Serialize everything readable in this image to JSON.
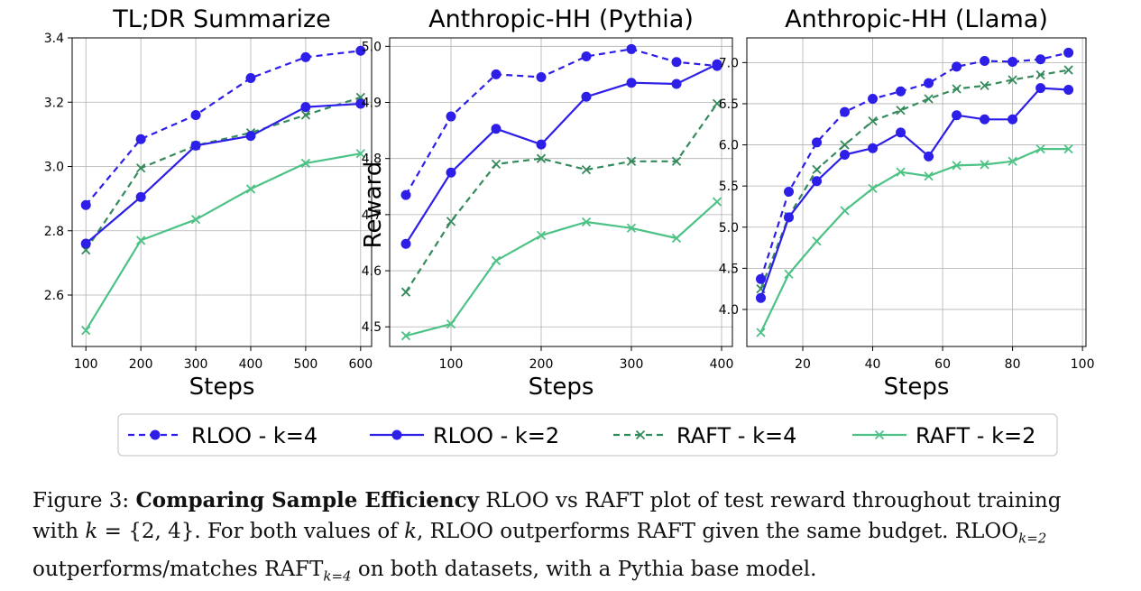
{
  "chart_data": [
    {
      "type": "line",
      "title": "TL;DR Summarize",
      "xlabel": "Steps",
      "ylabel": "",
      "xlim": [
        75,
        620
      ],
      "ylim": [
        2.44,
        3.4
      ],
      "xticks": [
        100,
        200,
        300,
        400,
        500,
        600
      ],
      "yticks": [
        2.6,
        2.8,
        3.0,
        3.2,
        3.4
      ],
      "ytick_labels": [
        "2.6",
        "2.8",
        "3.0",
        "3.2",
        "3.4"
      ],
      "grid": true,
      "series": [
        {
          "name": "RLOO - k=4",
          "x": [
            100,
            200,
            300,
            400,
            500,
            600
          ],
          "values": [
            2.88,
            3.085,
            3.16,
            3.275,
            3.34,
            3.36
          ]
        },
        {
          "name": "RLOO - k=2",
          "x": [
            100,
            200,
            300,
            400,
            500,
            600
          ],
          "values": [
            2.76,
            2.905,
            3.065,
            3.095,
            3.185,
            3.195
          ]
        },
        {
          "name": "RAFT - k=4",
          "x": [
            100,
            200,
            300,
            400,
            500,
            600
          ],
          "values": [
            2.74,
            2.995,
            3.065,
            3.105,
            3.16,
            3.215
          ]
        },
        {
          "name": "RAFT - k=2",
          "x": [
            100,
            200,
            300,
            400,
            500,
            600
          ],
          "values": [
            2.49,
            2.77,
            2.835,
            2.93,
            3.01,
            3.04
          ]
        }
      ]
    },
    {
      "type": "line",
      "title": "Anthropic-HH (Pythia)",
      "xlabel": "Steps",
      "ylabel": "Reward",
      "xlim": [
        32,
        412
      ],
      "ylim": [
        4.465,
        5.015
      ],
      "xticks": [
        100,
        200,
        300,
        400
      ],
      "yticks": [
        4.5,
        4.6,
        4.7,
        4.8,
        4.9,
        5.0
      ],
      "ytick_labels": [
        "4.5",
        "4.6",
        "4.7",
        "4.8",
        "4.9",
        "5.0"
      ],
      "grid": true,
      "series": [
        {
          "name": "RLOO - k=4",
          "x": [
            50,
            100,
            150,
            200,
            250,
            300,
            350,
            395
          ],
          "values": [
            4.735,
            4.875,
            4.95,
            4.945,
            4.982,
            4.995,
            4.972,
            4.965
          ]
        },
        {
          "name": "RLOO - k=2",
          "x": [
            50,
            100,
            150,
            200,
            250,
            300,
            350,
            395
          ],
          "values": [
            4.648,
            4.775,
            4.853,
            4.825,
            4.91,
            4.935,
            4.933,
            4.968
          ]
        },
        {
          "name": "RAFT - k=4",
          "x": [
            50,
            100,
            150,
            200,
            250,
            300,
            350,
            395
          ],
          "values": [
            4.562,
            4.688,
            4.79,
            4.8,
            4.78,
            4.795,
            4.795,
            4.898
          ]
        },
        {
          "name": "RAFT - k=2",
          "x": [
            50,
            100,
            150,
            200,
            250,
            300,
            350,
            395
          ],
          "values": [
            4.484,
            4.505,
            4.618,
            4.663,
            4.687,
            4.676,
            4.658,
            4.723
          ]
        }
      ]
    },
    {
      "type": "line",
      "title": "Anthropic-HH (Llama)",
      "xlabel": "Steps",
      "ylabel": "",
      "xlim": [
        4,
        101
      ],
      "ylim": [
        3.55,
        7.3
      ],
      "xticks": [
        20,
        40,
        60,
        80,
        100
      ],
      "yticks": [
        4.0,
        4.5,
        5.0,
        5.5,
        6.0,
        6.5,
        7.0
      ],
      "ytick_labels": [
        "4.0",
        "4.5",
        "5.0",
        "5.5",
        "6.0",
        "6.5",
        "7.0"
      ],
      "grid": true,
      "series": [
        {
          "name": "RLOO - k=4",
          "x": [
            8,
            16,
            24,
            32,
            40,
            48,
            56,
            64,
            72,
            80,
            88,
            96
          ],
          "values": [
            4.37,
            5.43,
            6.03,
            6.4,
            6.56,
            6.65,
            6.75,
            6.95,
            7.02,
            7.01,
            7.04,
            7.12
          ]
        },
        {
          "name": "RLOO - k=2",
          "x": [
            8,
            16,
            24,
            32,
            40,
            48,
            56,
            64,
            72,
            80,
            88,
            96
          ],
          "values": [
            4.14,
            5.12,
            5.56,
            5.88,
            5.96,
            6.15,
            5.86,
            6.36,
            6.31,
            6.31,
            6.69,
            6.67
          ]
        },
        {
          "name": "RAFT - k=4",
          "x": [
            8,
            16,
            24,
            32,
            40,
            48,
            56,
            64,
            72,
            80,
            88,
            96
          ],
          "values": [
            4.25,
            5.13,
            5.7,
            6.0,
            6.29,
            6.42,
            6.56,
            6.68,
            6.72,
            6.79,
            6.85,
            6.91
          ]
        },
        {
          "name": "RAFT - k=2",
          "x": [
            8,
            16,
            24,
            32,
            40,
            48,
            56,
            64,
            72,
            80,
            88,
            96
          ],
          "values": [
            3.72,
            4.43,
            4.83,
            5.2,
            5.47,
            5.67,
            5.62,
            5.75,
            5.76,
            5.8,
            5.95,
            5.95
          ]
        }
      ]
    }
  ],
  "legend": {
    "placement": "bottom-center",
    "entries": [
      {
        "label": "RLOO - k=4",
        "color": "#2d1ee8",
        "dash": true,
        "marker": "circle"
      },
      {
        "label": "RLOO - k=2",
        "color": "#2d1ee8",
        "dash": false,
        "marker": "circle"
      },
      {
        "label": "RAFT - k=4",
        "color": "#358a5c",
        "dash": true,
        "marker": "x"
      },
      {
        "label": "RAFT - k=2",
        "color": "#4cc285",
        "dash": false,
        "marker": "x"
      }
    ]
  },
  "caption": {
    "prefix": "Figure 3: ",
    "bold": "Comparing Sample Efficiency",
    "line1_rest": " RLOO vs RAFT plot of test reward throughout training",
    "line2_pre": "with ",
    "k_var": "k",
    "line2_eq": " = {2, 4}. For both values of ",
    "line2_k2": "k",
    "line2_post": ", RLOO outperforms RAFT given the same budget. RLOO",
    "sub1": "k=2",
    "line3_pre": "outperforms/matches RAFT",
    "sub2": "k=4",
    "line3_post": " on both datasets, with a Pythia base model."
  }
}
